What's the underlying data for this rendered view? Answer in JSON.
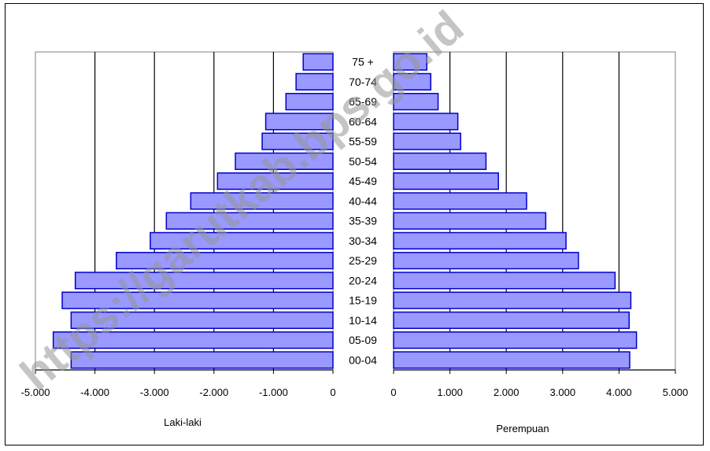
{
  "watermark": "https://garutkab.bps.go.id",
  "colors": {
    "bar_fill": "#9999ff",
    "bar_stroke": "#0000cc",
    "grid": "#000000"
  },
  "chart_data": [
    {
      "type": "bar",
      "orientation": "horizontal",
      "side": "left",
      "categories": [
        "00-04",
        "05-09",
        "10-14",
        "15-19",
        "20-24",
        "25-29",
        "30-34",
        "35-39",
        "40-44",
        "45-49",
        "50-54",
        "55-59",
        "60-64",
        "65-69",
        "70-74",
        "75 +"
      ],
      "values": [
        -4400,
        -4700,
        -4400,
        -4550,
        -4330,
        -3640,
        -3070,
        -2800,
        -2390,
        -1940,
        -1640,
        -1190,
        -1130,
        -790,
        -620,
        -500
      ],
      "xlabel": "Laki-laki",
      "xlim": [
        -5000,
        0
      ],
      "ticks": [
        "-5.000",
        "-4.000",
        "-3.000",
        "-2.000",
        "-1.000",
        "0"
      ],
      "grid": true
    },
    {
      "type": "bar",
      "orientation": "horizontal",
      "side": "right",
      "categories": [
        "00-04",
        "05-09",
        "10-14",
        "15-19",
        "20-24",
        "25-29",
        "30-34",
        "35-39",
        "40-44",
        "45-49",
        "50-54",
        "55-59",
        "60-64",
        "65-69",
        "70-74",
        "75 +"
      ],
      "values": [
        4190,
        4310,
        4180,
        4210,
        3930,
        3280,
        3060,
        2700,
        2360,
        1860,
        1640,
        1190,
        1140,
        790,
        660,
        590
      ],
      "xlabel": "Perempuan",
      "xlim": [
        0,
        5000
      ],
      "ticks": [
        "0",
        "1.000",
        "2.000",
        "3.000",
        "4.000",
        "5.000"
      ],
      "grid": true
    }
  ]
}
